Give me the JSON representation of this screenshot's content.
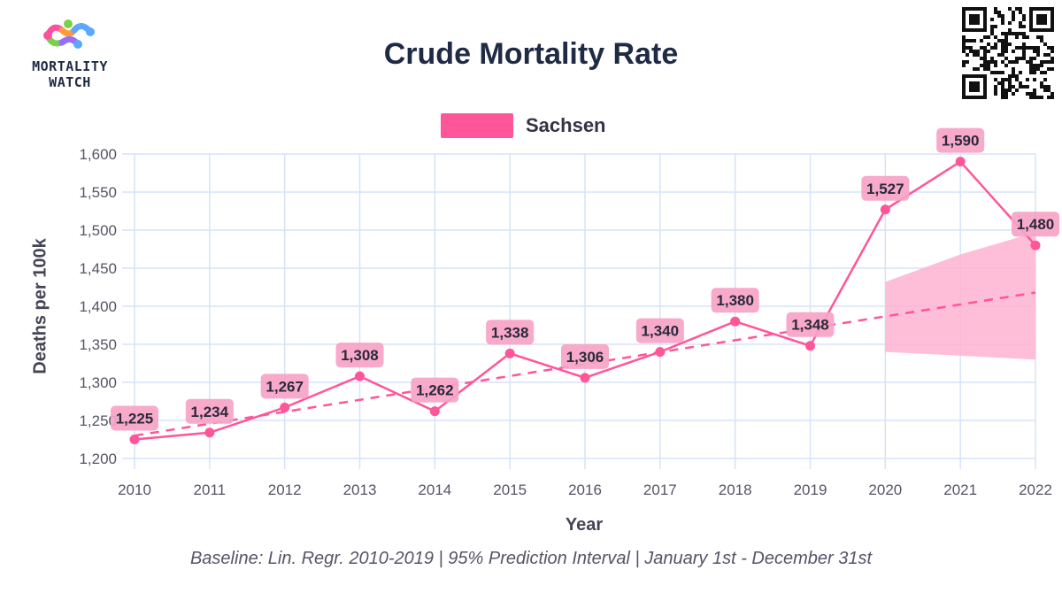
{
  "header": {
    "logo_line1": "MORTALITY",
    "logo_line2": "WATCH",
    "title": "Crude Mortality Rate"
  },
  "caption": "Baseline: Lin. Regr. 2010-2019 | 95% Prediction Interval | January 1st - December 31st",
  "colors": {
    "series": "#ff5599",
    "label_bg": "#f7a3c7",
    "band": "#ffb3d1",
    "grid": "#d6e3f8"
  },
  "chart_data": {
    "type": "line",
    "title": "Crude Mortality Rate",
    "xlabel": "Year",
    "ylabel": "Deaths per 100k",
    "x": [
      2010,
      2011,
      2012,
      2013,
      2014,
      2015,
      2016,
      2017,
      2018,
      2019,
      2020,
      2021,
      2022
    ],
    "x_ticks": [
      "2010",
      "2011",
      "2012",
      "2013",
      "2014",
      "2015",
      "2016",
      "2017",
      "2018",
      "2019",
      "2020",
      "2021",
      "2022"
    ],
    "y_ticks": [
      "1,200",
      "1,250",
      "1,300",
      "1,350",
      "1,400",
      "1,450",
      "1,500",
      "1,550",
      "1,600"
    ],
    "ylim": [
      1200,
      1600
    ],
    "grid": true,
    "legend_position": "top-center",
    "series": [
      {
        "name": "Sachsen",
        "values": [
          1225,
          1234,
          1267,
          1308,
          1262,
          1338,
          1306,
          1340,
          1380,
          1348,
          1527,
          1590,
          1480
        ],
        "labels": [
          "1,225",
          "1,234",
          "1,267",
          "1,308",
          "1,262",
          "1,338",
          "1,306",
          "1,340",
          "1,380",
          "1,348",
          "1,527",
          "1,590",
          "1,480"
        ]
      }
    ],
    "baseline": {
      "x": [
        2010,
        2022
      ],
      "values": [
        1230,
        1418
      ]
    },
    "prediction_interval": {
      "x": [
        2020,
        2021,
        2022
      ],
      "lower": [
        1340,
        1335,
        1330
      ],
      "upper": [
        1432,
        1468,
        1497
      ]
    }
  }
}
